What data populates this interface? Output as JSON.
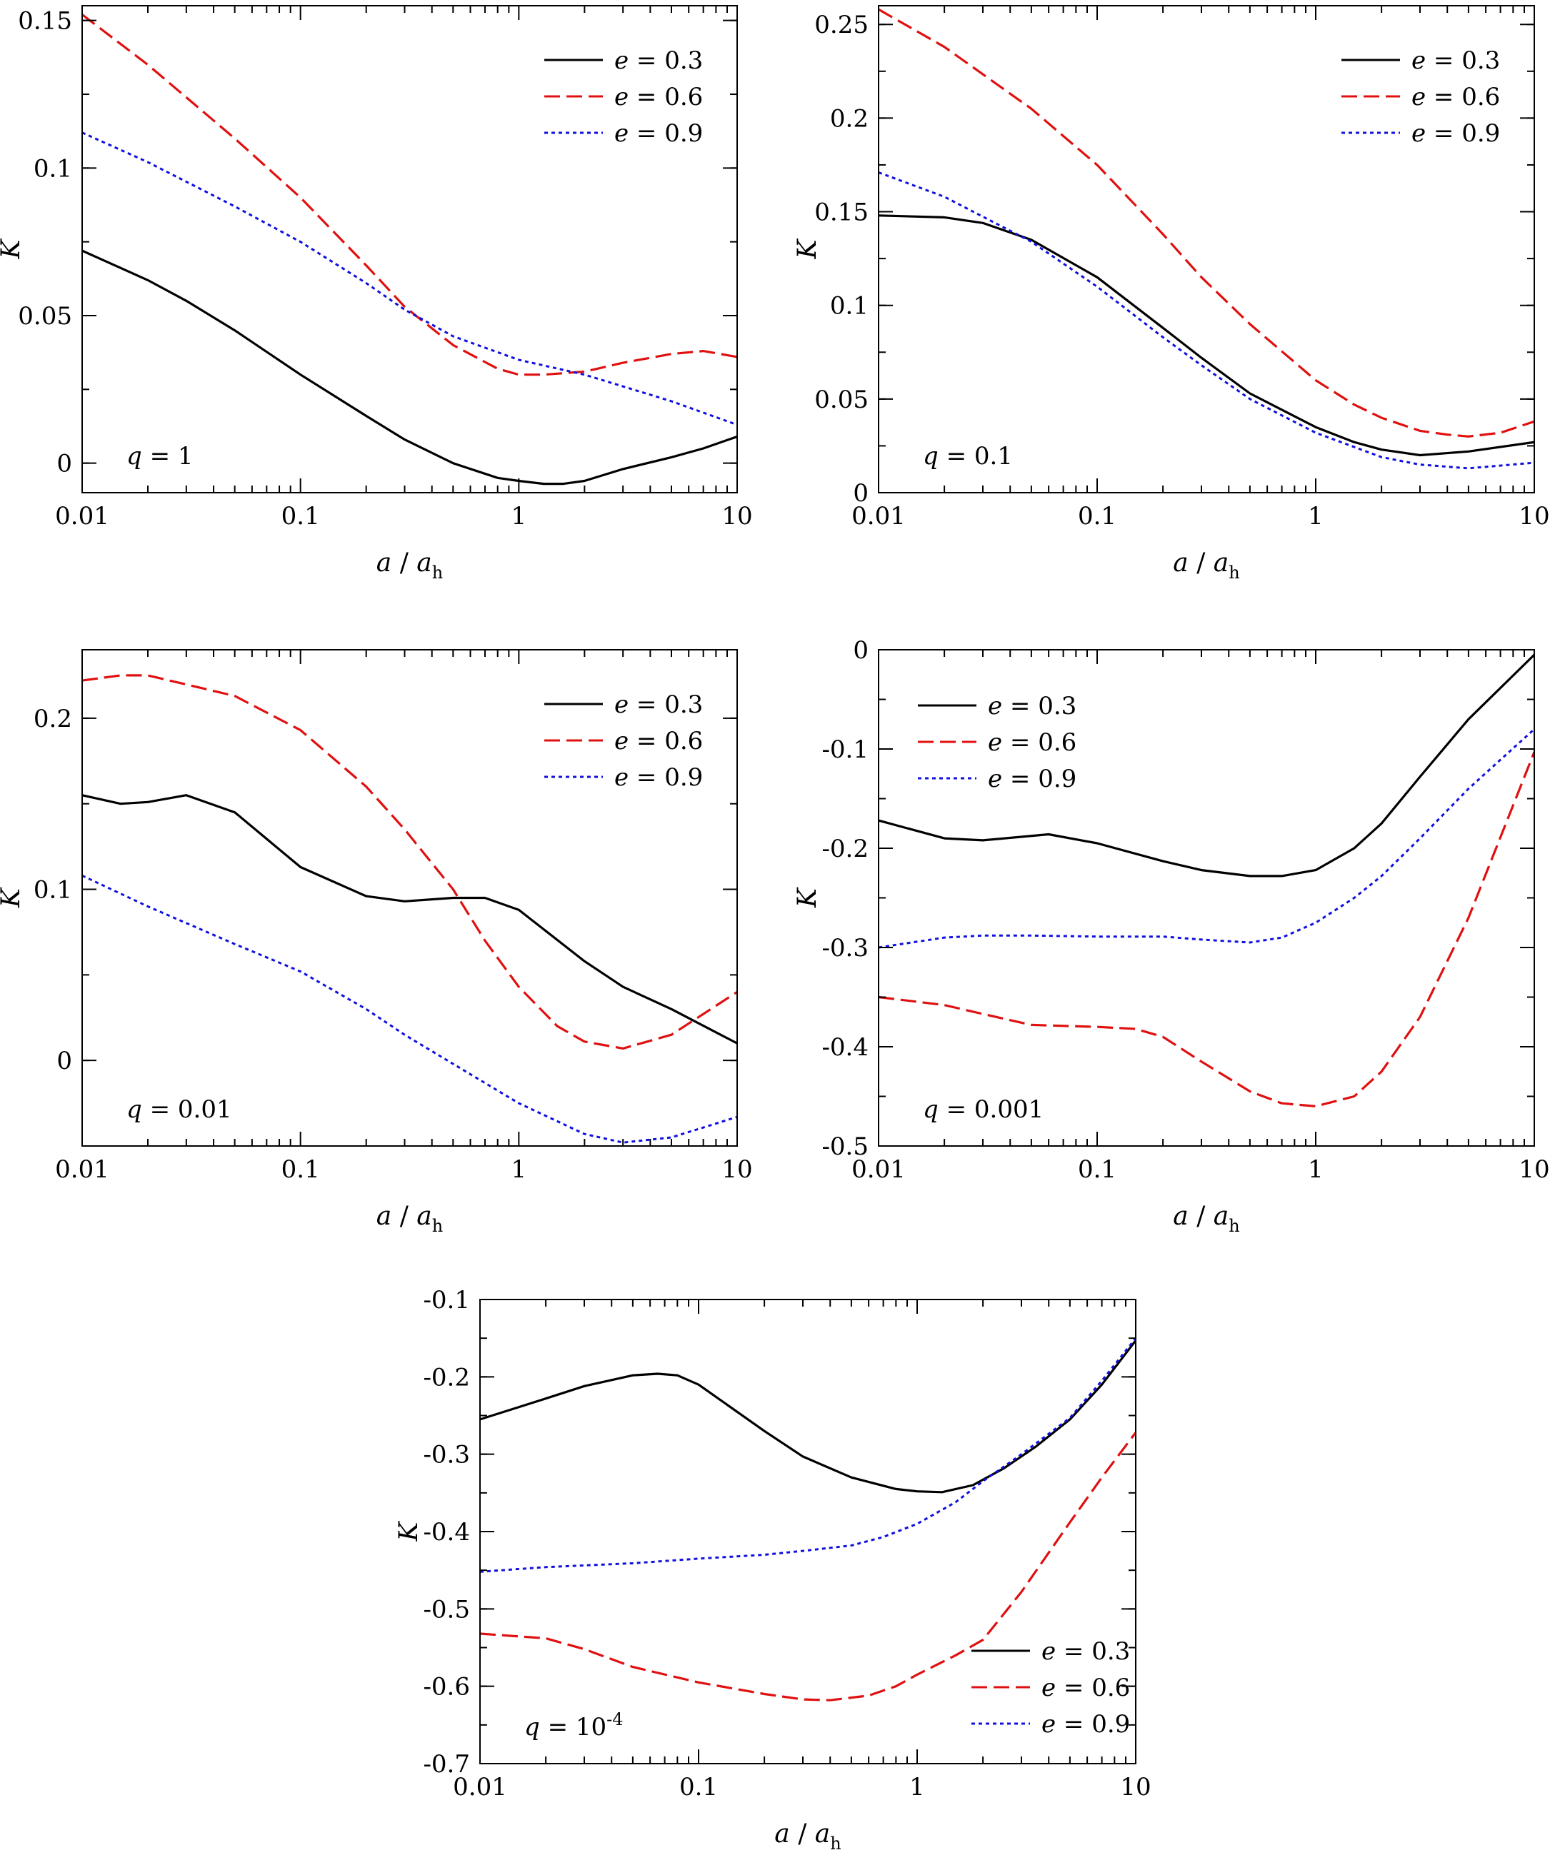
{
  "colors": {
    "e03": "#000000",
    "e06": "#e01010",
    "e09": "#1010e0"
  },
  "chart_data": [
    {
      "type": "line",
      "panel_label": {
        "var": "q",
        "rel": " = ",
        "value": "1",
        "sup": ""
      },
      "xlabel": {
        "var": "a",
        "sep": " / ",
        "var2": "a",
        "sub": "h"
      },
      "ylabel": "K",
      "xscale": "log",
      "xlim": [
        0.01,
        10
      ],
      "ylim": [
        -0.01,
        0.155
      ],
      "xticks": [
        0.01,
        0.1,
        1,
        10
      ],
      "xticklabels": [
        "0.01",
        "0.1",
        "1",
        "10"
      ],
      "yticks": [
        0,
        0.05,
        0.1,
        0.15
      ],
      "yticklabels": [
        "0",
        "0.05",
        "0.1",
        "0.15"
      ],
      "yminor": 0.025,
      "legend_loc": "top-right",
      "series": [
        {
          "var": "e",
          "name": " = 0.3",
          "style": "solid",
          "color_key": "e03",
          "x": [
            0.01,
            0.02,
            0.03,
            0.05,
            0.1,
            0.2,
            0.3,
            0.5,
            0.8,
            1.0,
            1.3,
            1.6,
            2.0,
            3.0,
            5.0,
            7.0,
            10.0
          ],
          "y": [
            0.072,
            0.062,
            0.055,
            0.045,
            0.03,
            0.016,
            0.008,
            0.0,
            -0.005,
            -0.006,
            -0.007,
            -0.007,
            -0.006,
            -0.002,
            0.002,
            0.005,
            0.009
          ]
        },
        {
          "var": "e",
          "name": " = 0.6",
          "style": "dashed",
          "color_key": "e06",
          "x": [
            0.01,
            0.02,
            0.05,
            0.1,
            0.2,
            0.3,
            0.5,
            0.8,
            1.0,
            1.3,
            2.0,
            3.0,
            5.0,
            7.0,
            10.0
          ],
          "y": [
            0.152,
            0.135,
            0.11,
            0.09,
            0.067,
            0.053,
            0.04,
            0.032,
            0.03,
            0.03,
            0.031,
            0.034,
            0.037,
            0.038,
            0.036
          ]
        },
        {
          "var": "e",
          "name": " = 0.9",
          "style": "dotted",
          "color_key": "e09",
          "x": [
            0.01,
            0.02,
            0.05,
            0.1,
            0.2,
            0.3,
            0.5,
            1.0,
            2.0,
            3.0,
            5.0,
            10.0
          ],
          "y": [
            0.112,
            0.102,
            0.087,
            0.075,
            0.061,
            0.052,
            0.043,
            0.035,
            0.03,
            0.026,
            0.021,
            0.013
          ]
        }
      ]
    },
    {
      "type": "line",
      "panel_label": {
        "var": "q",
        "rel": " = ",
        "value": "0.1",
        "sup": ""
      },
      "xlabel": {
        "var": "a",
        "sep": " / ",
        "var2": "a",
        "sub": "h"
      },
      "ylabel": "K",
      "xscale": "log",
      "xlim": [
        0.01,
        10
      ],
      "ylim": [
        0,
        0.26
      ],
      "xticks": [
        0.01,
        0.1,
        1,
        10
      ],
      "xticklabels": [
        "0.01",
        "0.1",
        "1",
        "10"
      ],
      "yticks": [
        0,
        0.05,
        0.1,
        0.15,
        0.2,
        0.25
      ],
      "yticklabels": [
        "0",
        "0.05",
        "0.1",
        "0.15",
        "0.2",
        "0.25"
      ],
      "yminor": 0.025,
      "legend_loc": "top-right",
      "series": [
        {
          "var": "e",
          "name": " = 0.3",
          "style": "solid",
          "color_key": "e03",
          "x": [
            0.01,
            0.02,
            0.03,
            0.05,
            0.1,
            0.2,
            0.3,
            0.5,
            1.0,
            1.5,
            2.0,
            3.0,
            5.0,
            10.0
          ],
          "y": [
            0.148,
            0.147,
            0.144,
            0.135,
            0.115,
            0.088,
            0.072,
            0.053,
            0.035,
            0.027,
            0.023,
            0.02,
            0.022,
            0.027
          ]
        },
        {
          "var": "e",
          "name": " = 0.6",
          "style": "dashed",
          "color_key": "e06",
          "x": [
            0.01,
            0.02,
            0.05,
            0.1,
            0.2,
            0.3,
            0.5,
            1.0,
            1.5,
            2.0,
            3.0,
            4.0,
            5.0,
            7.0,
            10.0
          ],
          "y": [
            0.258,
            0.238,
            0.205,
            0.175,
            0.138,
            0.115,
            0.09,
            0.06,
            0.047,
            0.04,
            0.033,
            0.031,
            0.03,
            0.032,
            0.038
          ]
        },
        {
          "var": "e",
          "name": " = 0.9",
          "style": "dotted",
          "color_key": "e09",
          "x": [
            0.01,
            0.02,
            0.05,
            0.1,
            0.2,
            0.3,
            0.5,
            1.0,
            2.0,
            3.0,
            5.0,
            10.0
          ],
          "y": [
            0.171,
            0.158,
            0.134,
            0.11,
            0.083,
            0.068,
            0.05,
            0.032,
            0.019,
            0.015,
            0.013,
            0.016
          ]
        }
      ]
    },
    {
      "type": "line",
      "panel_label": {
        "var": "q",
        "rel": " = ",
        "value": "0.01",
        "sup": ""
      },
      "xlabel": {
        "var": "a",
        "sep": " / ",
        "var2": "a",
        "sub": "h"
      },
      "ylabel": "K",
      "xscale": "log",
      "xlim": [
        0.01,
        10
      ],
      "ylim": [
        -0.05,
        0.24
      ],
      "xticks": [
        0.01,
        0.1,
        1,
        10
      ],
      "xticklabels": [
        "0.01",
        "0.1",
        "1",
        "10"
      ],
      "yticks": [
        0,
        0.1,
        0.2
      ],
      "yticklabels": [
        "0",
        "0.1",
        "0.2"
      ],
      "yminor": 0.05,
      "legend_loc": "top-right",
      "series": [
        {
          "var": "e",
          "name": " = 0.3",
          "style": "solid",
          "color_key": "e03",
          "x": [
            0.01,
            0.015,
            0.02,
            0.03,
            0.05,
            0.1,
            0.2,
            0.3,
            0.5,
            0.7,
            1.0,
            2.0,
            3.0,
            5.0,
            10.0
          ],
          "y": [
            0.155,
            0.15,
            0.151,
            0.155,
            0.145,
            0.113,
            0.096,
            0.093,
            0.095,
            0.095,
            0.088,
            0.058,
            0.043,
            0.03,
            0.01
          ]
        },
        {
          "var": "e",
          "name": " = 0.6",
          "style": "dashed",
          "color_key": "e06",
          "x": [
            0.01,
            0.015,
            0.02,
            0.05,
            0.1,
            0.2,
            0.3,
            0.5,
            0.7,
            1.0,
            1.5,
            2.0,
            3.0,
            5.0,
            10.0
          ],
          "y": [
            0.222,
            0.225,
            0.225,
            0.213,
            0.193,
            0.16,
            0.135,
            0.1,
            0.07,
            0.043,
            0.02,
            0.011,
            0.007,
            0.015,
            0.04
          ]
        },
        {
          "var": "e",
          "name": " = 0.9",
          "style": "dotted",
          "color_key": "e09",
          "x": [
            0.01,
            0.02,
            0.05,
            0.1,
            0.2,
            0.3,
            0.5,
            1.0,
            2.0,
            3.0,
            5.0,
            10.0
          ],
          "y": [
            0.108,
            0.09,
            0.068,
            0.052,
            0.03,
            0.015,
            -0.002,
            -0.025,
            -0.043,
            -0.048,
            -0.045,
            -0.033
          ]
        }
      ]
    },
    {
      "type": "line",
      "panel_label": {
        "var": "q",
        "rel": " = ",
        "value": "0.001",
        "sup": ""
      },
      "xlabel": {
        "var": "a",
        "sep": " / ",
        "var2": "a",
        "sub": "h"
      },
      "ylabel": "K",
      "xscale": "log",
      "xlim": [
        0.01,
        10
      ],
      "ylim": [
        -0.5,
        0
      ],
      "xticks": [
        0.01,
        0.1,
        1,
        10
      ],
      "xticklabels": [
        "0.01",
        "0.1",
        "1",
        "10"
      ],
      "yticks": [
        -0.5,
        -0.4,
        -0.3,
        -0.2,
        -0.1,
        0
      ],
      "yticklabels": [
        "-0.5",
        "-0.4",
        "-0.3",
        "-0.2",
        "-0.1",
        "0"
      ],
      "yminor": 0.05,
      "legend_loc": "top-left",
      "series": [
        {
          "var": "e",
          "name": " = 0.3",
          "style": "solid",
          "color_key": "e03",
          "x": [
            0.01,
            0.02,
            0.03,
            0.06,
            0.1,
            0.2,
            0.3,
            0.5,
            0.7,
            1.0,
            1.5,
            2.0,
            3.0,
            5.0,
            10.0
          ],
          "y": [
            -0.172,
            -0.19,
            -0.192,
            -0.186,
            -0.195,
            -0.213,
            -0.222,
            -0.228,
            -0.228,
            -0.222,
            -0.2,
            -0.175,
            -0.128,
            -0.07,
            -0.005
          ]
        },
        {
          "var": "e",
          "name": " = 0.6",
          "style": "dashed",
          "color_key": "e06",
          "x": [
            0.01,
            0.02,
            0.03,
            0.05,
            0.1,
            0.15,
            0.2,
            0.3,
            0.5,
            0.7,
            1.0,
            1.5,
            2.0,
            3.0,
            5.0,
            10.0
          ],
          "y": [
            -0.35,
            -0.358,
            -0.367,
            -0.378,
            -0.38,
            -0.382,
            -0.39,
            -0.415,
            -0.445,
            -0.457,
            -0.46,
            -0.45,
            -0.425,
            -0.37,
            -0.27,
            -0.103
          ]
        },
        {
          "var": "e",
          "name": " = 0.9",
          "style": "dotted",
          "color_key": "e09",
          "x": [
            0.01,
            0.02,
            0.03,
            0.05,
            0.1,
            0.2,
            0.3,
            0.5,
            0.7,
            1.0,
            1.5,
            2.0,
            3.0,
            5.0,
            10.0
          ],
          "y": [
            -0.3,
            -0.29,
            -0.288,
            -0.288,
            -0.289,
            -0.289,
            -0.292,
            -0.295,
            -0.29,
            -0.275,
            -0.25,
            -0.228,
            -0.19,
            -0.14,
            -0.08
          ]
        }
      ]
    },
    {
      "type": "line",
      "panel_label": {
        "var": "q",
        "rel": " = ",
        "value": "10",
        "sup": "-4"
      },
      "xlabel": {
        "var": "a",
        "sep": " / ",
        "var2": "a",
        "sub": "h"
      },
      "ylabel": "K",
      "xscale": "log",
      "xlim": [
        0.01,
        10
      ],
      "ylim": [
        -0.7,
        -0.1
      ],
      "xticks": [
        0.01,
        0.1,
        1,
        10
      ],
      "xticklabels": [
        "0.01",
        "0.1",
        "1",
        "10"
      ],
      "yticks": [
        -0.7,
        -0.6,
        -0.5,
        -0.4,
        -0.3,
        -0.2,
        -0.1
      ],
      "yticklabels": [
        "-0.7",
        "-0.6",
        "-0.5",
        "-0.4",
        "-0.3",
        "-0.2",
        "-0.1"
      ],
      "yminor": 0.05,
      "legend_loc": "bottom-right",
      "series": [
        {
          "var": "e",
          "name": " = 0.3",
          "style": "solid",
          "color_key": "e03",
          "x": [
            0.01,
            0.02,
            0.03,
            0.05,
            0.065,
            0.08,
            0.1,
            0.2,
            0.3,
            0.5,
            0.8,
            1.0,
            1.3,
            1.8,
            2.5,
            3.5,
            5.0,
            7.0,
            10.0
          ],
          "y": [
            -0.255,
            -0.228,
            -0.212,
            -0.198,
            -0.196,
            -0.198,
            -0.21,
            -0.27,
            -0.303,
            -0.33,
            -0.345,
            -0.348,
            -0.349,
            -0.34,
            -0.318,
            -0.29,
            -0.255,
            -0.21,
            -0.153
          ]
        },
        {
          "var": "e",
          "name": " = 0.6",
          "style": "dashed",
          "color_key": "e06",
          "x": [
            0.01,
            0.02,
            0.03,
            0.05,
            0.1,
            0.2,
            0.3,
            0.4,
            0.6,
            0.8,
            1.0,
            1.5,
            2.0,
            3.0,
            5.0,
            7.0,
            10.0
          ],
          "y": [
            -0.532,
            -0.538,
            -0.552,
            -0.575,
            -0.595,
            -0.61,
            -0.617,
            -0.618,
            -0.612,
            -0.6,
            -0.585,
            -0.56,
            -0.54,
            -0.478,
            -0.388,
            -0.33,
            -0.272
          ]
        },
        {
          "var": "e",
          "name": " = 0.9",
          "style": "dotted",
          "color_key": "e09",
          "x": [
            0.01,
            0.02,
            0.05,
            0.1,
            0.2,
            0.3,
            0.5,
            0.7,
            1.0,
            1.5,
            2.0,
            3.0,
            5.0,
            7.0,
            10.0
          ],
          "y": [
            -0.452,
            -0.446,
            -0.441,
            -0.435,
            -0.43,
            -0.425,
            -0.418,
            -0.407,
            -0.39,
            -0.362,
            -0.335,
            -0.3,
            -0.253,
            -0.205,
            -0.15
          ]
        }
      ]
    }
  ]
}
